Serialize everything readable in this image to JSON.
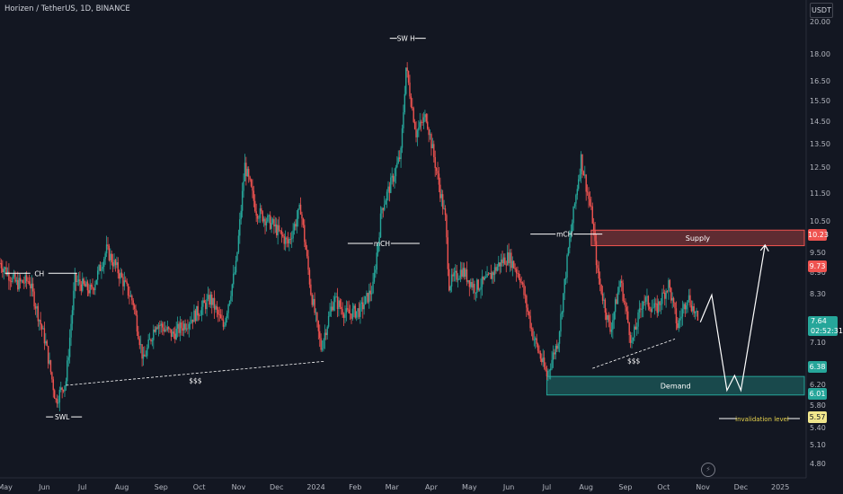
{
  "header": {
    "symbol_title": "Horizen / TetherUS, 1D, BINANCE",
    "currency": "USDT"
  },
  "colors": {
    "background": "#131722",
    "up": "#26a69a",
    "down": "#ef5350",
    "supply_fill": "#ef5350",
    "demand_fill": "#26a69a",
    "annotation": "#ffffff"
  },
  "chart_data": {
    "type": "candlestick",
    "y_scale": "log",
    "ylim": [
      4.6,
      21.5
    ],
    "xlim": [
      "2023-04-27",
      "2025-01-20"
    ],
    "grid": false,
    "y_ticks": [
      "20.00",
      "18.00",
      "16.50",
      "15.50",
      "14.50",
      "13.50",
      "12.50",
      "11.50",
      "10.50",
      "9.50",
      "8.90",
      "8.30",
      "7.10",
      "6.20",
      "5.80",
      "5.40",
      "5.10",
      "4.80"
    ],
    "x_ticks": [
      "May",
      "Jun",
      "Jul",
      "Aug",
      "Sep",
      "Oct",
      "Nov",
      "Dec",
      "2024",
      "Feb",
      "Mar",
      "Apr",
      "May",
      "Jun",
      "Jul",
      "Aug",
      "Sep",
      "Oct",
      "Nov",
      "Dec",
      "2025"
    ],
    "price_path": [
      {
        "date": "2023-04-27",
        "close": 9.2
      },
      {
        "date": "2023-05-10",
        "close": 8.6
      },
      {
        "date": "2023-05-20",
        "close": 8.7
      },
      {
        "date": "2023-06-02",
        "close": 7.1
      },
      {
        "date": "2023-06-10",
        "close": 5.9
      },
      {
        "date": "2023-06-18",
        "close": 6.3
      },
      {
        "date": "2023-06-25",
        "close": 8.7
      },
      {
        "date": "2023-07-08",
        "close": 8.4
      },
      {
        "date": "2023-07-20",
        "close": 9.6
      },
      {
        "date": "2023-07-30",
        "close": 8.9
      },
      {
        "date": "2023-08-10",
        "close": 8.1
      },
      {
        "date": "2023-08-18",
        "close": 6.7
      },
      {
        "date": "2023-08-28",
        "close": 7.6
      },
      {
        "date": "2023-09-10",
        "close": 7.3
      },
      {
        "date": "2023-09-25",
        "close": 7.7
      },
      {
        "date": "2023-10-10",
        "close": 8.2
      },
      {
        "date": "2023-10-20",
        "close": 7.5
      },
      {
        "date": "2023-10-30",
        "close": 9.1
      },
      {
        "date": "2023-11-06",
        "close": 12.6
      },
      {
        "date": "2023-11-15",
        "close": 10.9
      },
      {
        "date": "2023-11-28",
        "close": 10.4
      },
      {
        "date": "2023-12-10",
        "close": 9.8
      },
      {
        "date": "2023-12-20",
        "close": 11.0
      },
      {
        "date": "2023-12-28",
        "close": 8.4
      },
      {
        "date": "2024-01-05",
        "close": 7.0
      },
      {
        "date": "2024-01-15",
        "close": 8.2
      },
      {
        "date": "2024-01-25",
        "close": 7.8
      },
      {
        "date": "2024-02-05",
        "close": 7.9
      },
      {
        "date": "2024-02-15",
        "close": 8.5
      },
      {
        "date": "2024-02-22",
        "close": 11.0
      },
      {
        "date": "2024-03-01",
        "close": 12.0
      },
      {
        "date": "2024-03-08",
        "close": 13.1
      },
      {
        "date": "2024-03-12",
        "close": 17.3
      },
      {
        "date": "2024-03-20",
        "close": 14.0
      },
      {
        "date": "2024-03-28",
        "close": 14.8
      },
      {
        "date": "2024-04-05",
        "close": 12.4
      },
      {
        "date": "2024-04-12",
        "close": 10.6
      },
      {
        "date": "2024-04-15",
        "close": 8.6
      },
      {
        "date": "2024-04-25",
        "close": 9.0
      },
      {
        "date": "2024-05-05",
        "close": 8.5
      },
      {
        "date": "2024-05-15",
        "close": 8.7
      },
      {
        "date": "2024-05-25",
        "close": 9.2
      },
      {
        "date": "2024-06-01",
        "close": 9.4
      },
      {
        "date": "2024-06-10",
        "close": 8.8
      },
      {
        "date": "2024-06-20",
        "close": 7.3
      },
      {
        "date": "2024-07-01",
        "close": 6.4
      },
      {
        "date": "2024-07-10",
        "close": 7.2
      },
      {
        "date": "2024-07-18",
        "close": 9.6
      },
      {
        "date": "2024-07-28",
        "close": 12.9
      },
      {
        "date": "2024-08-06",
        "close": 10.6
      },
      {
        "date": "2024-08-10",
        "close": 8.9
      },
      {
        "date": "2024-08-20",
        "close": 7.4
      },
      {
        "date": "2024-08-28",
        "close": 8.7
      },
      {
        "date": "2024-09-06",
        "close": 7.1
      },
      {
        "date": "2024-09-15",
        "close": 8.2
      },
      {
        "date": "2024-09-25",
        "close": 7.9
      },
      {
        "date": "2024-10-05",
        "close": 8.6
      },
      {
        "date": "2024-10-12",
        "close": 7.5
      },
      {
        "date": "2024-10-20",
        "close": 8.3
      },
      {
        "date": "2024-10-28",
        "close": 7.64
      }
    ],
    "zones": [
      {
        "label": "Supply",
        "from": "2024-08-05",
        "to": "2025-01-20",
        "low": 9.73,
        "high": 10.23
      },
      {
        "label": "Demand",
        "from": "2024-07-01",
        "to": "2025-01-20",
        "low": 6.01,
        "high": 6.38
      }
    ],
    "levels": [
      {
        "label": "CH",
        "date": "2023-05-28",
        "price": 8.9
      },
      {
        "label": "mCH",
        "date": "2024-02-22",
        "price": 9.8
      },
      {
        "label": "mCH",
        "date": "2024-07-15",
        "price": 10.1
      },
      {
        "label": "SW H",
        "date": "2024-03-12",
        "price": 19.0
      },
      {
        "label": "SWL",
        "date": "2023-06-15",
        "price": 5.6
      },
      {
        "label": "invalidation level",
        "price": 5.57
      }
    ],
    "liquidity": [
      {
        "label": "$$$",
        "from": [
          "2023-06-18",
          6.2
        ],
        "to": [
          "2024-01-08",
          6.7
        ]
      },
      {
        "label": "$$$",
        "from": [
          "2024-08-06",
          6.55
        ],
        "to": [
          "2024-10-10",
          7.2
        ]
      }
    ],
    "projection": [
      {
        "date": "2024-10-30",
        "price": 7.6
      },
      {
        "date": "2024-11-08",
        "price": 8.3
      },
      {
        "date": "2024-11-20",
        "price": 6.1
      },
      {
        "date": "2024-11-26",
        "price": 6.4
      },
      {
        "date": "2024-12-01",
        "price": 6.1
      },
      {
        "date": "2024-12-20",
        "price": 9.75
      }
    ],
    "price_badges": {
      "supply_high": "10.23",
      "supply_low": "9.73",
      "demand_high": "6.38",
      "demand_low": "6.01",
      "invalidation": "5.57",
      "current_price": "7.64",
      "countdown": "02:52:31"
    }
  }
}
